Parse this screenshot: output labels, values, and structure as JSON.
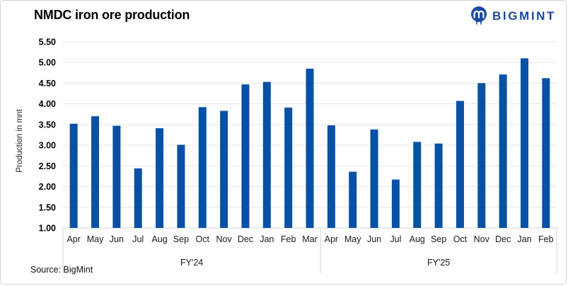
{
  "header": {
    "title": "NMDC iron ore production"
  },
  "logo": {
    "brand": "BIGMINT",
    "color": "#1d4aa0",
    "icon": "bigmint-miner-icon"
  },
  "source": {
    "label": "Source: BigMint"
  },
  "chart_data": {
    "type": "bar",
    "title": "NMDC iron ore production",
    "xlabel": "",
    "ylabel": "Production in mnt",
    "ylim": [
      1.0,
      5.5
    ],
    "ytick_step": 0.5,
    "grid": true,
    "legend": "none",
    "bar_color": "#0751a5",
    "groups": [
      {
        "label": "FY'24",
        "categories": [
          "Apr",
          "May",
          "Jun",
          "Jul",
          "Aug",
          "Sep",
          "Oct",
          "Nov",
          "Dec",
          "Jan",
          "Feb",
          "Mar"
        ],
        "values": [
          3.52,
          3.7,
          3.47,
          2.44,
          3.41,
          3.01,
          3.92,
          3.83,
          4.47,
          4.53,
          3.91,
          4.85
        ]
      },
      {
        "label": "FY'25",
        "categories": [
          "Apr",
          "May",
          "Jun",
          "Jul",
          "Aug",
          "Sep",
          "Oct",
          "Nov",
          "Dec",
          "Jan",
          "Feb"
        ],
        "values": [
          3.48,
          2.36,
          3.38,
          2.17,
          3.08,
          3.04,
          4.07,
          4.5,
          4.71,
          5.1,
          4.62
        ]
      }
    ],
    "source": "Source: BigMint"
  }
}
